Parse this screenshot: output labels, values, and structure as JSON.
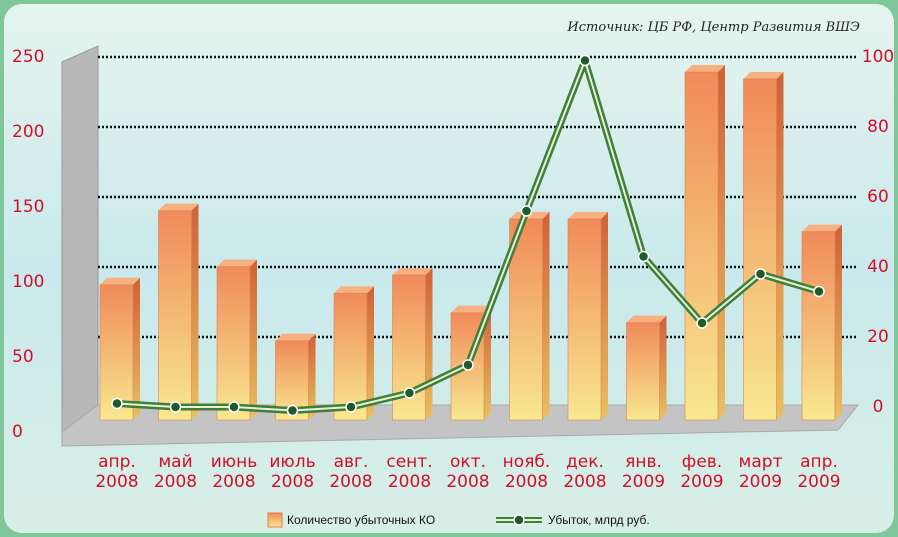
{
  "chart_data": {
    "type": "bar",
    "source": "Источник: ЦБ РФ, Центр Развития ВШЭ",
    "categories": [
      "апр.\n2008",
      "май\n2008",
      "июнь\n2008",
      "июль\n2008",
      "авг.\n2008",
      "сент.\n2008",
      "окт.\n2008",
      "нояб.\n2008",
      "дек.\n2008",
      "янв.\n2009",
      "фев.\n2009",
      "март\n2009",
      "апр.\n2009"
    ],
    "series": [
      {
        "name": "Количество убыточных КО",
        "color": "#f0a050",
        "values": [
          93,
          146,
          106,
          53,
          87,
          100,
          73,
          140,
          140,
          66,
          245,
          240,
          131
        ]
      },
      {
        "name": "Убыток, млрд руб.",
        "color": "#3f7f3a",
        "type": "line",
        "axis": "y2",
        "values": [
          1,
          0,
          0,
          -1,
          0,
          4,
          12,
          56,
          99,
          43,
          24,
          38,
          33
        ]
      }
    ],
    "ylim": [
      0,
      250
    ],
    "yticks": [
      0,
      50,
      100,
      150,
      200,
      250
    ],
    "y2lim": [
      0,
      100
    ],
    "y2ticks": [
      0,
      20,
      40,
      60,
      80,
      100
    ],
    "grid": true
  }
}
